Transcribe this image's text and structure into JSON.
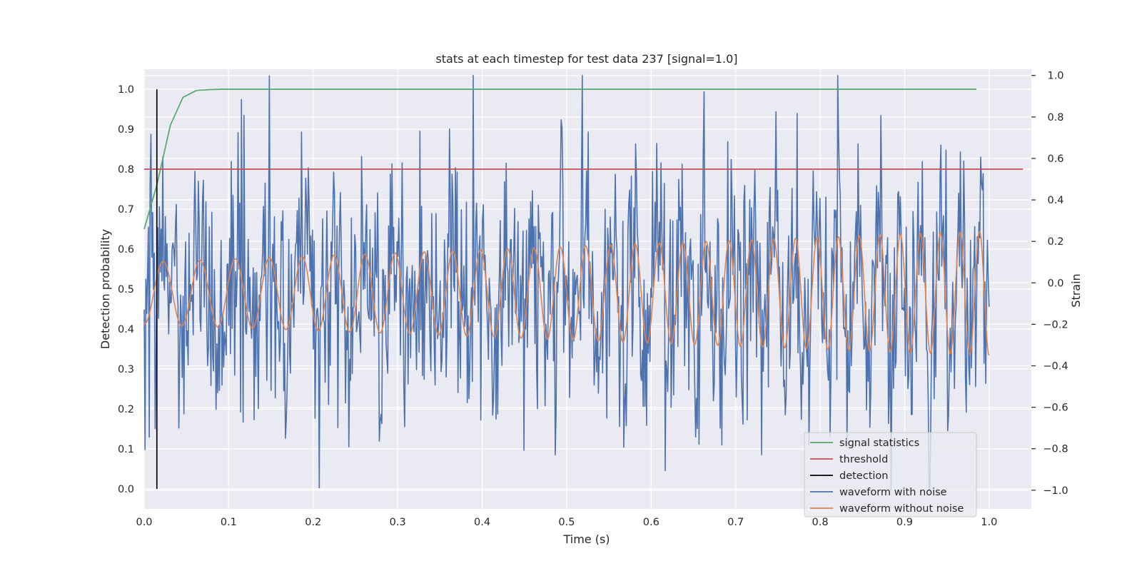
{
  "chart_data": {
    "type": "line",
    "title": "stats at each timestep for test data 237 [signal=1.0]",
    "xlabel": "Time (s)",
    "ylabel": "Detection probability",
    "ylabel_right": "Strain",
    "xlim": [
      0.0,
      1.05
    ],
    "ylim": [
      -0.05,
      1.05
    ],
    "ylim_right": [
      -1.09,
      1.03
    ],
    "x_ticks": [
      "0.0",
      "0.1",
      "0.2",
      "0.3",
      "0.4",
      "0.5",
      "0.6",
      "0.7",
      "0.8",
      "0.9",
      "1.0"
    ],
    "y_ticks": [
      "0.0",
      "0.1",
      "0.2",
      "0.3",
      "0.4",
      "0.5",
      "0.6",
      "0.7",
      "0.8",
      "0.9",
      "1.0"
    ],
    "y_ticks_right": [
      "−1.0",
      "−0.8",
      "−0.6",
      "−0.4",
      "−0.2",
      "0.0",
      "0.2",
      "0.4",
      "0.6",
      "0.8",
      "1.0"
    ],
    "grid": true,
    "legend_position": "lower-right",
    "colors": {
      "background": "#eaeaf2",
      "signal_statistics": "#55a868",
      "threshold": "#c44e52",
      "detection": "#000000",
      "waveform_with_noise": "#4c72b0",
      "waveform_without_noise": "#dd8452"
    },
    "legend": [
      "signal statistics",
      "threshold",
      "detection",
      "waveform with noise",
      "waveform without noise"
    ],
    "series": [
      {
        "name": "signal statistics",
        "axis": "left",
        "x": [
          0.0,
          0.015,
          0.031,
          0.046,
          0.062,
          0.077,
          0.092,
          0.2,
          0.4,
          0.6,
          0.8,
          0.985
        ],
        "y": [
          0.65,
          0.76,
          0.91,
          0.98,
          0.997,
          0.999,
          1.0,
          1.0,
          1.0,
          1.0,
          1.0,
          1.0
        ]
      },
      {
        "name": "threshold",
        "axis": "left",
        "x": [
          0.0,
          1.04
        ],
        "y": [
          0.8,
          0.8
        ]
      },
      {
        "name": "detection",
        "axis": "left",
        "x": [
          0.015,
          0.015
        ],
        "y": [
          0.0,
          1.0
        ]
      },
      {
        "name": "waveform without noise",
        "axis": "right",
        "x_range": [
          0.0,
          1.0
        ],
        "n_points": 1400,
        "waveform": "chirp",
        "start_frequency_hz": 22,
        "end_frequency_hz": 44,
        "start_amplitude": 0.15,
        "end_amplitude": 0.3,
        "offset": -0.05
      },
      {
        "name": "waveform with noise",
        "axis": "right",
        "x_range": [
          0.0,
          1.0
        ],
        "n_points": 1000,
        "noise_std": 0.3,
        "min": -1.0,
        "max": 1.0
      }
    ]
  }
}
